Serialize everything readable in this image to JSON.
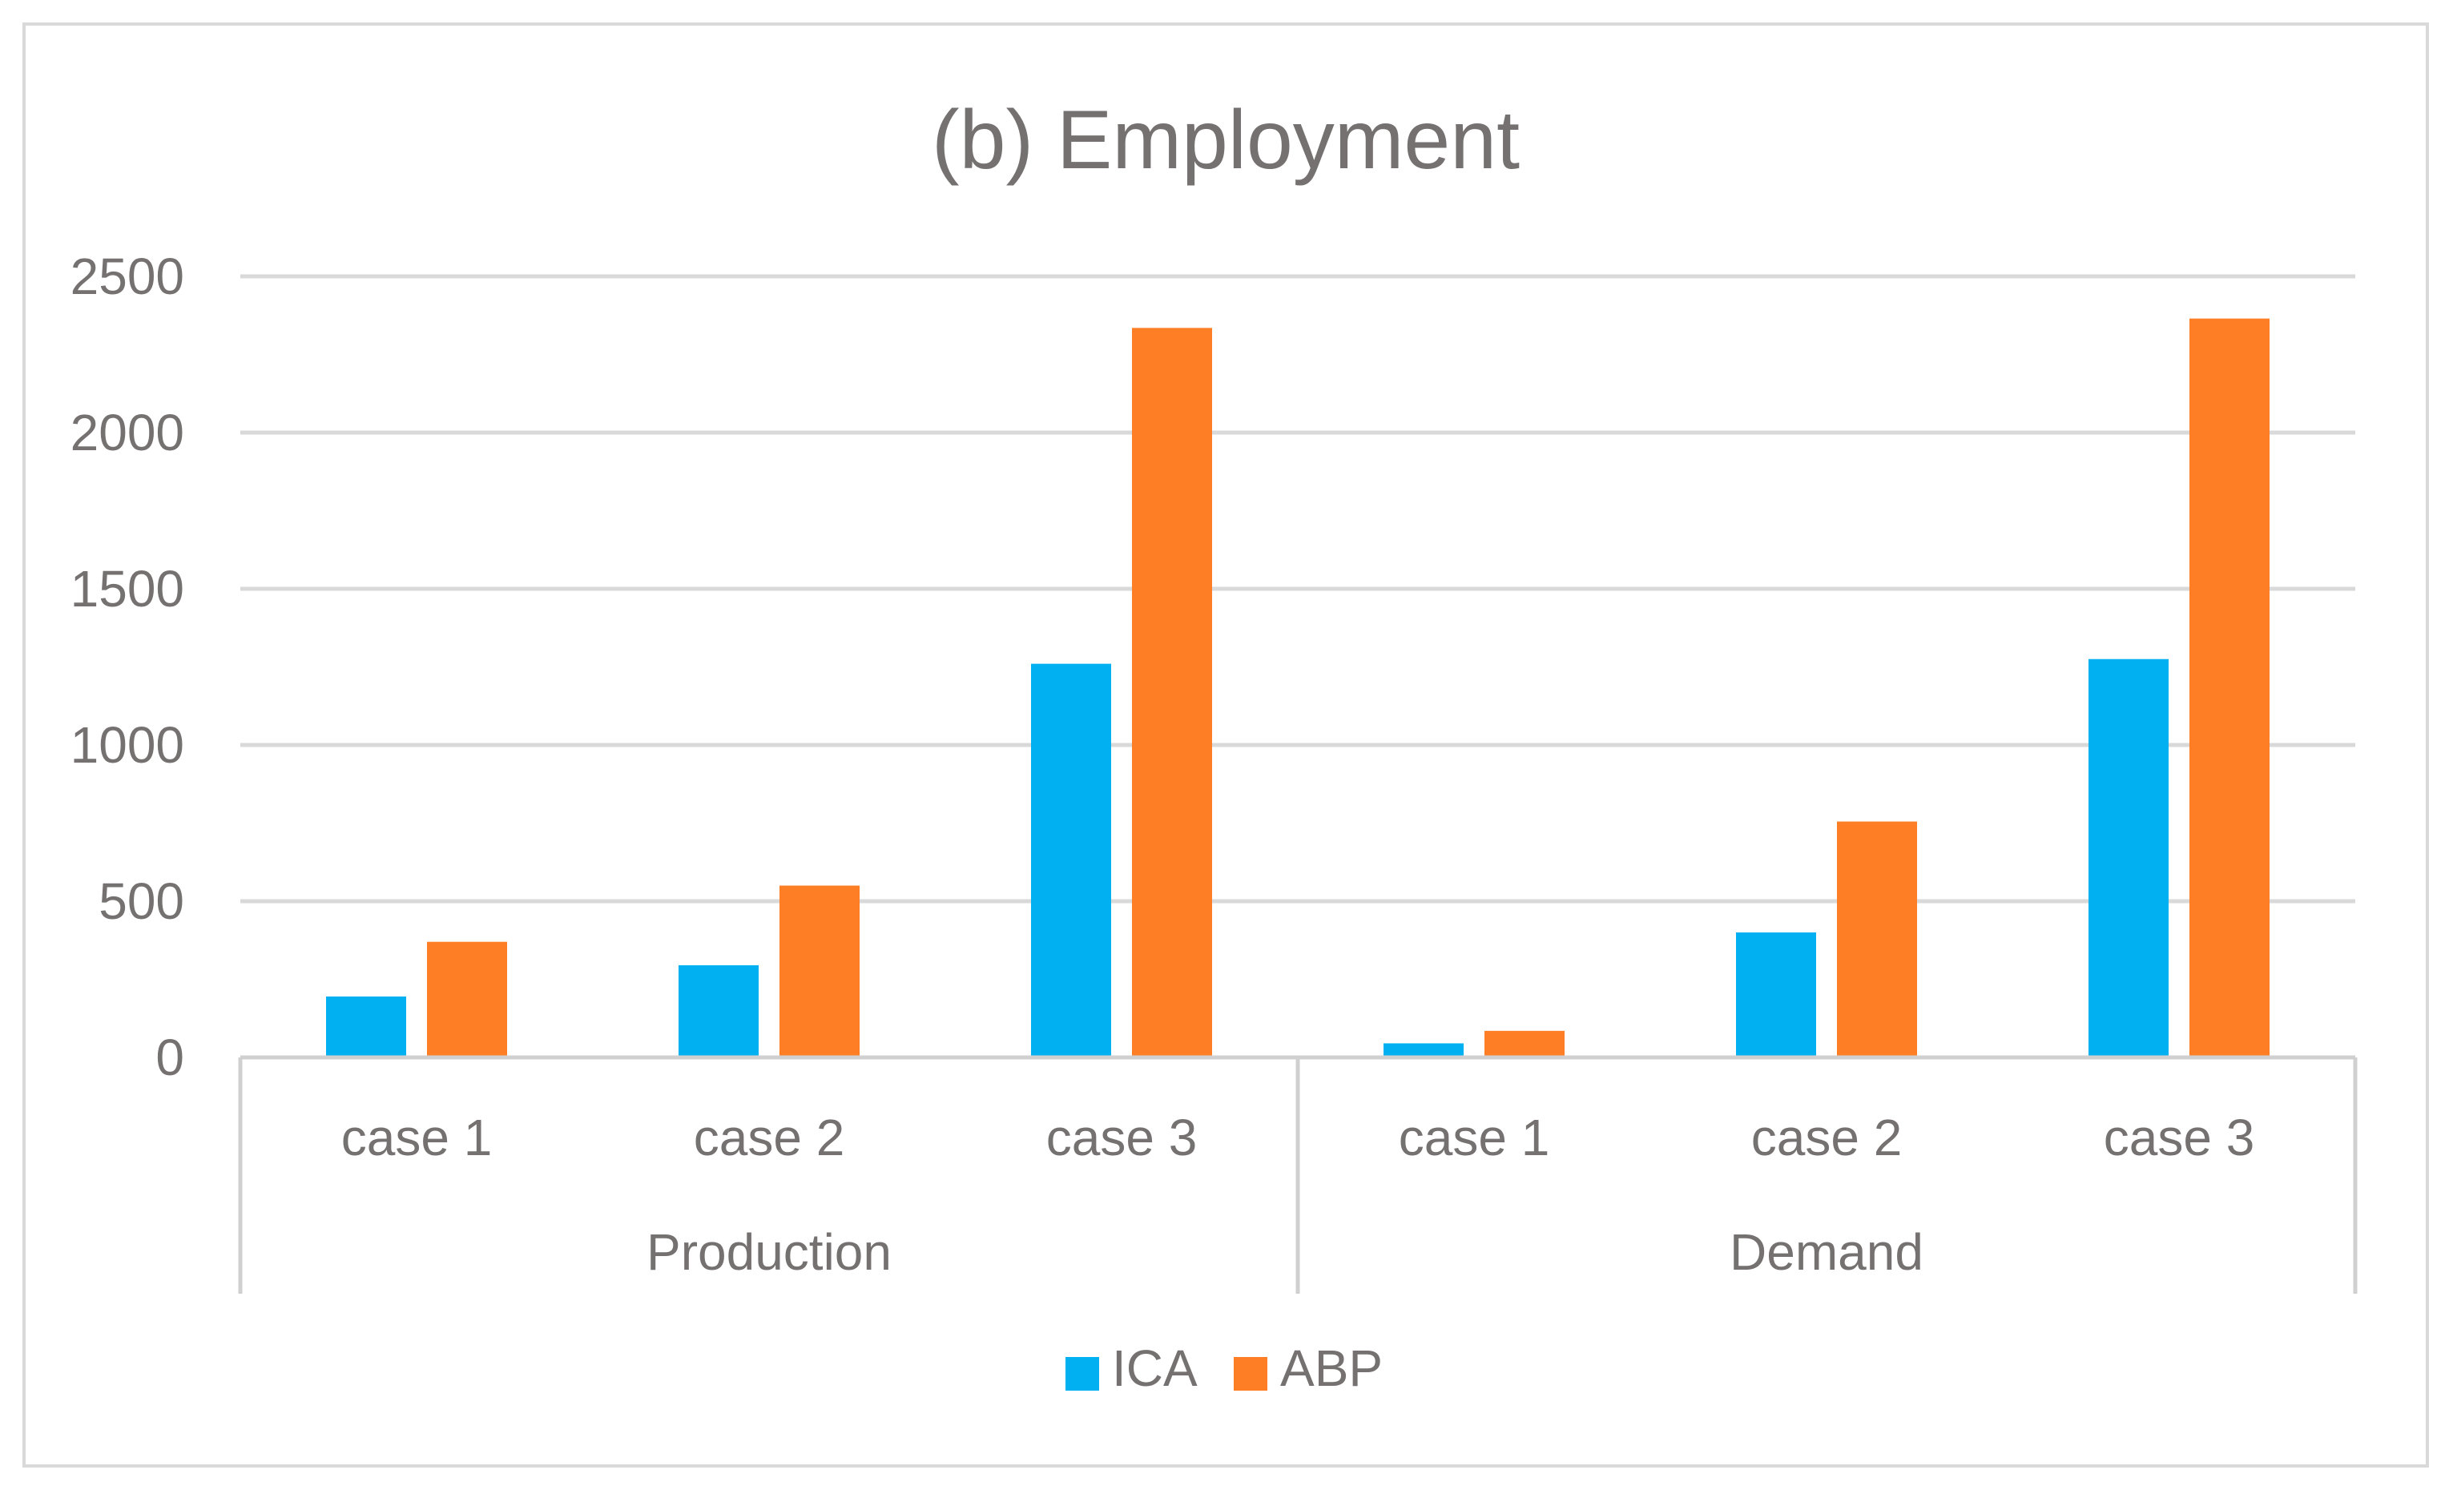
{
  "chart_data": {
    "type": "bar",
    "title": "(b) Employment",
    "xlabel": "",
    "ylabel": "",
    "ylim": [
      0,
      2500
    ],
    "yticks": [
      0,
      500,
      1000,
      1500,
      2000,
      2500
    ],
    "grid": true,
    "legend_position": "bottom",
    "groups": [
      {
        "label": "Production",
        "categories": [
          "case 1",
          "case 2",
          "case 3"
        ]
      },
      {
        "label": "Demand",
        "categories": [
          "case 1",
          "case 2",
          "case 3"
        ]
      }
    ],
    "series": [
      {
        "name": "ICA",
        "color": "#00b0f0",
        "values": [
          195,
          295,
          1260,
          45,
          400,
          1275
        ]
      },
      {
        "name": "ABP",
        "color": "#fd7e25",
        "values": [
          370,
          550,
          2335,
          85,
          755,
          2365
        ]
      }
    ]
  },
  "colors": {
    "text": "#767171",
    "title": "#767171",
    "gridline": "#d9d9d9",
    "axis": "#d0d0d0",
    "frame": "#d9d9d9"
  }
}
